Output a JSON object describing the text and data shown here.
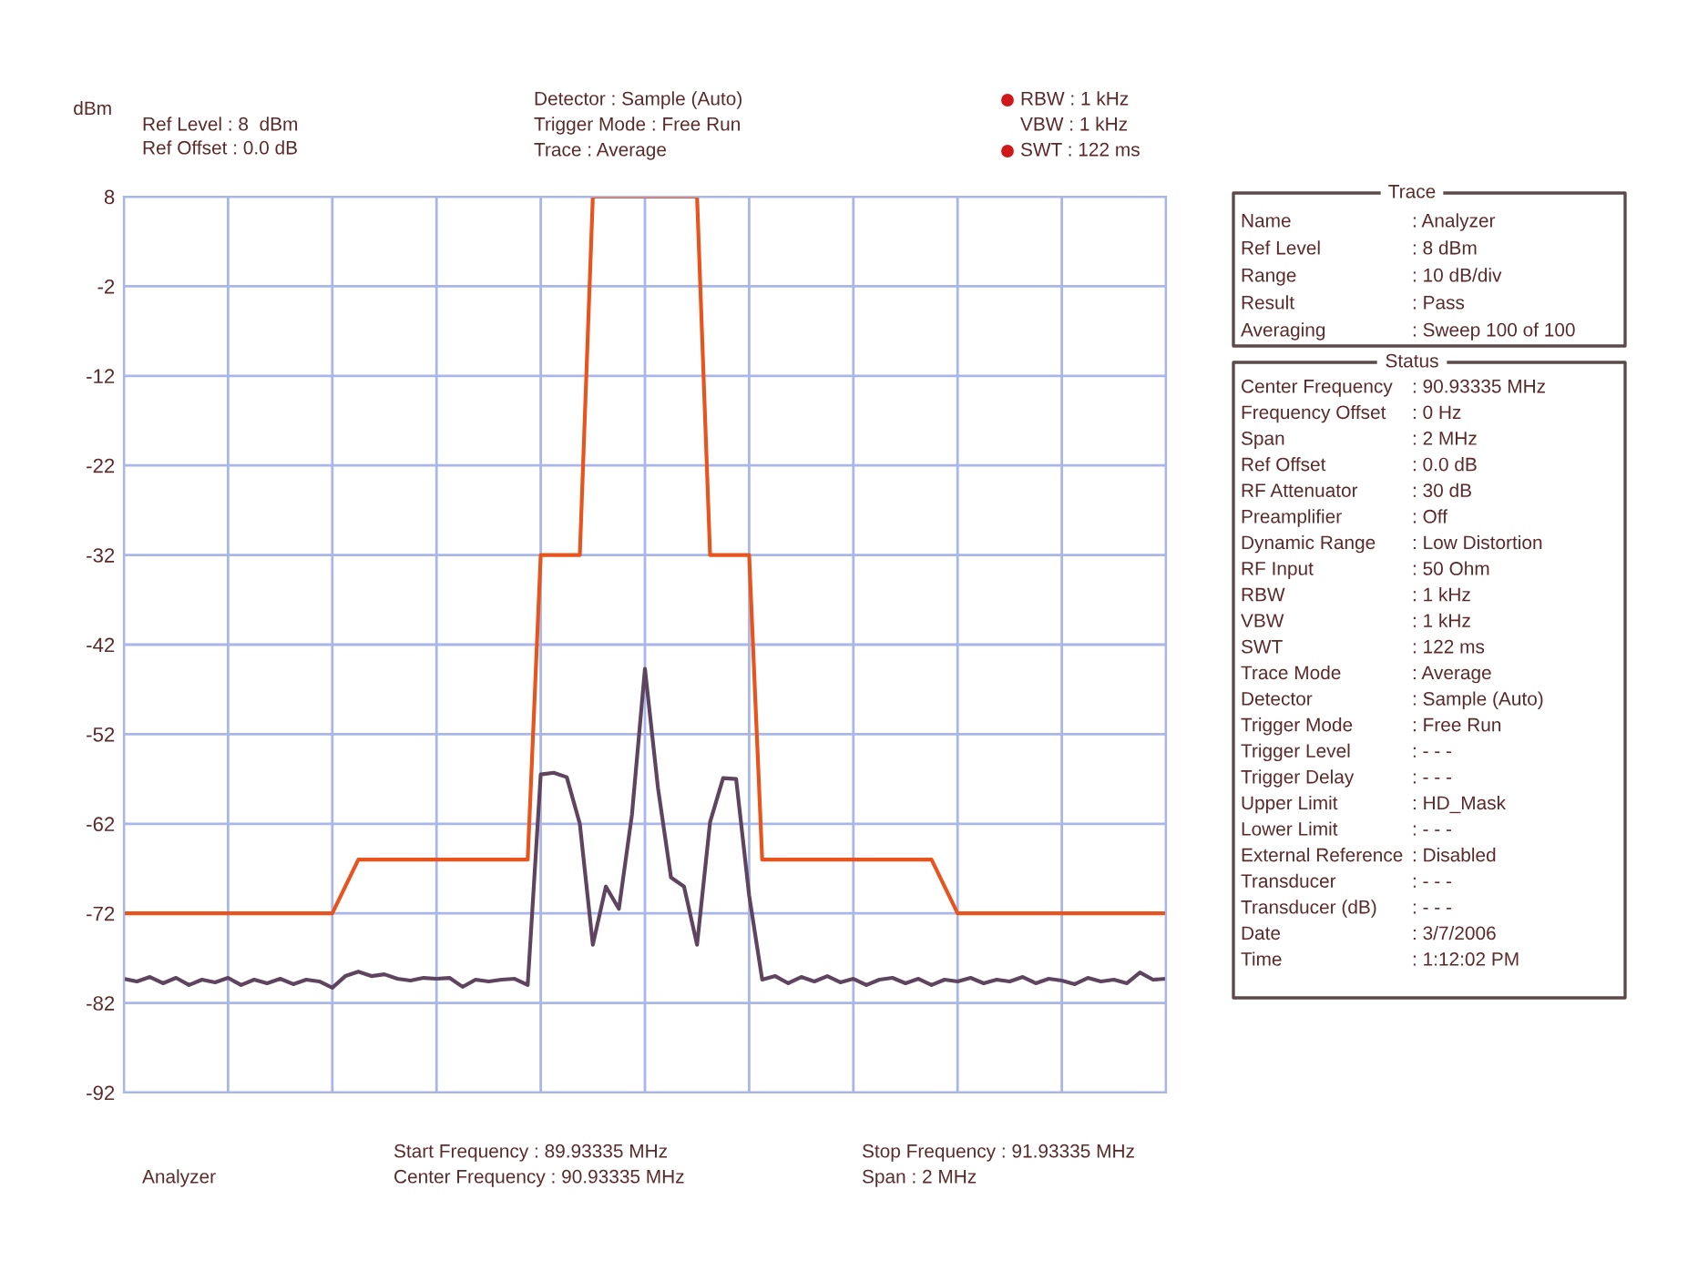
{
  "chart_data": {
    "type": "line",
    "ylabel": "dBm",
    "categories": [
      null,
      null,
      null,
      null,
      null,
      null,
      null,
      null,
      null,
      null,
      null,
      null,
      null,
      null,
      null,
      null,
      null,
      null,
      null,
      null,
      null,
      null,
      null,
      null,
      null,
      null,
      null,
      null,
      null,
      null,
      null,
      null,
      null,
      null,
      null,
      null,
      null,
      null,
      null,
      null,
      null,
      null,
      null,
      null,
      null,
      null,
      null,
      null,
      null,
      null,
      null,
      null,
      null,
      null,
      null,
      null,
      null,
      null,
      null,
      null,
      null,
      null,
      null,
      null,
      null,
      null,
      null,
      null,
      null,
      null,
      null,
      null,
      null,
      null,
      null,
      null,
      null,
      null,
      null,
      null,
      null
    ],
    "ylim": [
      -92,
      8
    ],
    "yticks": [
      8,
      -2,
      -12,
      -22,
      -32,
      -42,
      -52,
      -62,
      -72,
      -82,
      -92
    ],
    "grid": true,
    "tick_labels": "y",
    "marker": "none",
    "line_style": "solid",
    "series": [
      {
        "color": "#e8541e",
        "values": [
          -72,
          -72,
          -72,
          -72,
          -72,
          -72,
          -72,
          -72,
          -72,
          -72,
          -72,
          -72,
          -72,
          -72,
          -72,
          -72,
          -72,
          -69,
          -66,
          -66,
          -66,
          -66,
          -66,
          -66,
          -66,
          -66,
          -66,
          -66,
          -66,
          -66,
          -66,
          -66,
          -32,
          -32,
          -32,
          -32,
          8,
          8,
          8,
          8,
          8,
          8,
          8,
          8,
          8,
          -32,
          -32,
          -32,
          -32,
          -66,
          -66,
          -66,
          -66,
          -66,
          -66,
          -66,
          -66,
          -66,
          -66,
          -66,
          -66,
          -66,
          -66,
          -69,
          -72,
          -72,
          -72,
          -72,
          -72,
          -72,
          -72,
          -72,
          -72,
          -72,
          -72,
          -72,
          -72,
          -72,
          -72,
          -72,
          -72
        ]
      },
      {
        "color": "#5e445e",
        "values": [
          -79.3,
          -79.6,
          -79.1,
          -79.8,
          -79.2,
          -80.0,
          -79.4,
          -79.7,
          -79.2,
          -80.0,
          -79.4,
          -79.8,
          -79.3,
          -79.9,
          -79.4,
          -79.6,
          -80.3,
          -79.0,
          -78.5,
          -79.0,
          -78.8,
          -79.3,
          -79.5,
          -79.2,
          -79.3,
          -79.2,
          -80.2,
          -79.4,
          -79.6,
          -79.4,
          -79.3,
          -80.0,
          -56.5,
          -56.3,
          -56.8,
          -62,
          -75.5,
          -69,
          -71.5,
          -61,
          -44.7,
          -58,
          -68,
          -69,
          -75.5,
          -61.8,
          -56.9,
          -57,
          -70,
          -79.4,
          -79.0,
          -79.8,
          -79.1,
          -79.6,
          -79.0,
          -79.7,
          -79.3,
          -80.0,
          -79.4,
          -79.2,
          -79.8,
          -79.3,
          -80.0,
          -79.4,
          -79.6,
          -79.2,
          -79.8,
          -79.4,
          -79.6,
          -79.1,
          -79.8,
          -79.3,
          -79.5,
          -79.9,
          -79.2,
          -79.6,
          -79.4,
          -79.8,
          -78.6,
          -79.4,
          -79.3
        ]
      }
    ],
    "annotations": [
      "Ref Level : 8  dBm",
      "Ref Offset : 0.0 dB",
      "Detector : Sample (Auto)",
      "Trigger Mode : Free Run",
      "Trace : Average",
      "RBW : 1 kHz",
      "VBW : 1 kHz",
      "SWT : 122 ms",
      "Analyzer",
      "Start Frequency : 89.93335 MHz",
      "Center Frequency : 90.93335 MHz",
      "Stop Frequency : 91.93335 MHz",
      "Span : 2 MHz",
      "Trace",
      "Name",
      ": Analyzer",
      "Ref Level",
      ": 8 dBm",
      "Range",
      ": 10 dB/div",
      "Result",
      ": Pass",
      "Averaging",
      ": Sweep 100 of 100",
      "Status",
      "Center Frequency",
      ": 90.93335 MHz",
      "Frequency Offset",
      ": 0 Hz",
      "Span",
      ": 2 MHz",
      "Ref Offset",
      ": 0.0 dB",
      "RF Attenuator",
      ": 30 dB",
      "Preamplifier",
      ": Off",
      "Dynamic Range",
      ": Low Distortion",
      "RF Input",
      ": 50 Ohm",
      "RBW",
      ": 1 kHz",
      "VBW",
      ": 1 kHz",
      "SWT",
      ": 122 ms",
      "Trace Mode",
      ": Average",
      "Detector",
      ": Sample (Auto)",
      "Trigger Mode",
      ": Free Run",
      "Trigger Level",
      ": - - -",
      "Trigger Delay",
      ": - - -",
      "Upper Limit",
      ": HD_Mask",
      "Lower Limit",
      ": - - -",
      "External Reference",
      ": Disabled",
      "Transducer",
      ": - - -",
      "Transducer (dB)",
      ": - - -",
      "Date",
      ": 3/7/2006",
      "Time",
      ": 1:12:02 PM"
    ]
  }
}
